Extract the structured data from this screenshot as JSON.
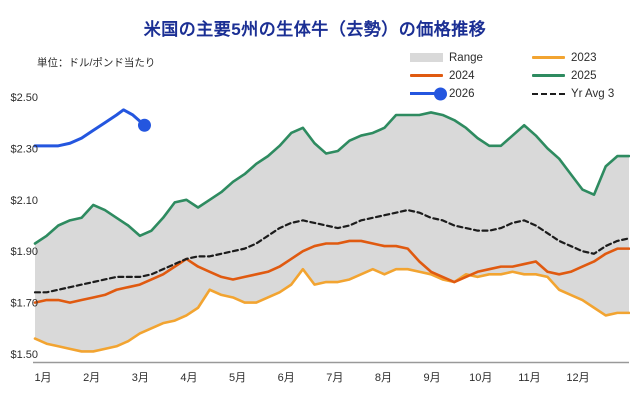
{
  "title": "米国の主要5州の生体牛（去勢）の価格推移",
  "unit_label": "単位：ドル/ポンド当たり",
  "colors": {
    "title_text": "#1b2f94",
    "body_text": "#2d2d2d",
    "axis_line": "#999999",
    "range_band": "#d9d9d9",
    "series_2023": "#f2a431",
    "series_2024": "#e05a10",
    "series_2025": "#2e8b60",
    "series_2026": "#2456df",
    "series_avg": "#1c1c1c"
  },
  "legend": {
    "items": [
      {
        "label": "Range",
        "swatch": "band",
        "color": "#d9d9d9"
      },
      {
        "label": "2023",
        "swatch": "line",
        "color": "#f2a431"
      },
      {
        "label": "2024",
        "swatch": "line",
        "color": "#e05a10"
      },
      {
        "label": "2025",
        "swatch": "line",
        "color": "#2e8b60"
      },
      {
        "label": "2026",
        "swatch": "line-dot",
        "color": "#2456df"
      },
      {
        "label": "Yr Avg 3",
        "swatch": "dashed",
        "color": "#1c1c1c"
      }
    ]
  },
  "chart_data": {
    "type": "line",
    "title": "米国の主要5州の生体牛（去勢）の価格推移",
    "unit": "ドル/ポンド当たり (USD/lb)",
    "grid": false,
    "legend_position": "top-right",
    "x_tick_labels": [
      "1月",
      "2月",
      "3月",
      "4月",
      "5月",
      "6月",
      "7月",
      "8月",
      "9月",
      "10月",
      "11月",
      "12月"
    ],
    "y_tick_labels": [
      "$2.50",
      "$2.30",
      "$2.10",
      "$1.90",
      "$1.70",
      "$1.50"
    ],
    "y_tick_values": [
      2.5,
      2.3,
      2.1,
      1.9,
      1.7,
      1.5
    ],
    "ylim": [
      1.46,
      2.56
    ],
    "x_weeks": 52,
    "band": {
      "name": "Range",
      "upper_series": "2025",
      "lower_series": "2023",
      "color": "#d9d9d9"
    },
    "series": [
      {
        "name": "2023",
        "color": "#f2a431",
        "style": "solid",
        "values": [
          1.56,
          1.54,
          1.53,
          1.52,
          1.51,
          1.51,
          1.52,
          1.53,
          1.55,
          1.58,
          1.6,
          1.62,
          1.63,
          1.65,
          1.68,
          1.75,
          1.73,
          1.72,
          1.7,
          1.7,
          1.72,
          1.74,
          1.77,
          1.83,
          1.77,
          1.78,
          1.78,
          1.79,
          1.81,
          1.83,
          1.81,
          1.83,
          1.83,
          1.82,
          1.81,
          1.79,
          1.78,
          1.81,
          1.8,
          1.81,
          1.81,
          1.82,
          1.81,
          1.81,
          1.8,
          1.75,
          1.73,
          1.71,
          1.68,
          1.65,
          1.66,
          1.66
        ]
      },
      {
        "name": "2024",
        "color": "#e05a10",
        "style": "solid",
        "values": [
          1.7,
          1.71,
          1.71,
          1.7,
          1.71,
          1.72,
          1.73,
          1.75,
          1.76,
          1.77,
          1.79,
          1.81,
          1.84,
          1.87,
          1.84,
          1.82,
          1.8,
          1.79,
          1.8,
          1.81,
          1.82,
          1.84,
          1.87,
          1.9,
          1.92,
          1.93,
          1.93,
          1.94,
          1.94,
          1.93,
          1.92,
          1.92,
          1.91,
          1.86,
          1.82,
          1.8,
          1.78,
          1.8,
          1.82,
          1.83,
          1.84,
          1.84,
          1.85,
          1.86,
          1.82,
          1.81,
          1.82,
          1.84,
          1.86,
          1.89,
          1.91,
          1.91
        ]
      },
      {
        "name": "Yr Avg 3",
        "color": "#1c1c1c",
        "style": "dashed",
        "values": [
          1.74,
          1.74,
          1.75,
          1.76,
          1.77,
          1.78,
          1.79,
          1.8,
          1.8,
          1.8,
          1.81,
          1.83,
          1.85,
          1.87,
          1.88,
          1.88,
          1.89,
          1.9,
          1.91,
          1.93,
          1.96,
          1.99,
          2.01,
          2.02,
          2.01,
          2.0,
          1.99,
          2.0,
          2.02,
          2.03,
          2.04,
          2.05,
          2.06,
          2.05,
          2.03,
          2.02,
          2.0,
          1.99,
          1.98,
          1.98,
          1.99,
          2.01,
          2.02,
          2.0,
          1.97,
          1.94,
          1.92,
          1.9,
          1.89,
          1.92,
          1.94,
          1.95
        ]
      },
      {
        "name": "2025",
        "color": "#2e8b60",
        "style": "solid",
        "values": [
          1.93,
          1.96,
          2.0,
          2.02,
          2.03,
          2.08,
          2.06,
          2.03,
          2.0,
          1.96,
          1.98,
          2.03,
          2.09,
          2.1,
          2.07,
          2.1,
          2.13,
          2.17,
          2.2,
          2.24,
          2.27,
          2.31,
          2.36,
          2.38,
          2.32,
          2.28,
          2.29,
          2.33,
          2.35,
          2.36,
          2.38,
          2.43,
          2.43,
          2.43,
          2.44,
          2.43,
          2.41,
          2.38,
          2.34,
          2.31,
          2.31,
          2.35,
          2.39,
          2.35,
          2.3,
          2.26,
          2.2,
          2.14,
          2.12,
          2.23,
          2.27,
          2.27
        ]
      },
      {
        "name": "2026",
        "color": "#2456df",
        "style": "solid",
        "end_dot": true,
        "x": [
          0,
          1,
          2,
          3,
          4,
          5,
          6,
          7,
          7.6,
          8.4,
          9.4
        ],
        "values": [
          2.31,
          2.31,
          2.31,
          2.32,
          2.34,
          2.37,
          2.4,
          2.43,
          2.45,
          2.43,
          2.39
        ]
      }
    ]
  }
}
